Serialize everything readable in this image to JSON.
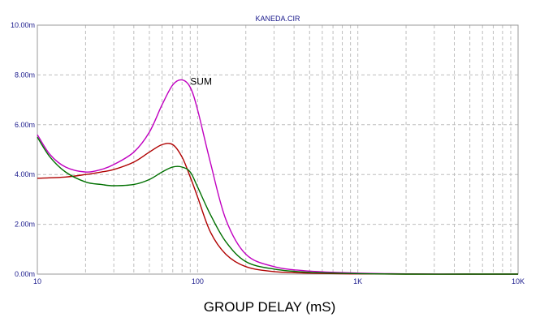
{
  "chart_data": {
    "type": "line",
    "title": "KANEDA.CIR",
    "xlabel": "GROUP DELAY (mS)",
    "ylabel": "",
    "x_scale": "log",
    "xlim": [
      10,
      10000
    ],
    "ylim": [
      0,
      0.01
    ],
    "x_ticks": [
      {
        "value": 10,
        "label": "10"
      },
      {
        "value": 100,
        "label": "100"
      },
      {
        "value": 1000,
        "label": "1K"
      },
      {
        "value": 10000,
        "label": "10K"
      }
    ],
    "y_ticks": [
      {
        "value": 0,
        "label": "0.00m"
      },
      {
        "value": 0.002,
        "label": "2.00m"
      },
      {
        "value": 0.004,
        "label": "4.00m"
      },
      {
        "value": 0.006,
        "label": "6.00m"
      },
      {
        "value": 0.008,
        "label": "8.00m"
      },
      {
        "value": 0.01,
        "label": "10.00m"
      }
    ],
    "grid": true,
    "grid_style": "dashed",
    "annotations": [
      {
        "text": "SUM",
        "x": 90,
        "y": 0.0076
      }
    ],
    "series": [
      {
        "name": "",
        "color": "#c000c0",
        "x": [
          10,
          12,
          15,
          20,
          25,
          30,
          40,
          50,
          60,
          70,
          80,
          90,
          100,
          120,
          150,
          200,
          300,
          500,
          1000,
          1500,
          2000,
          5000,
          10000
        ],
        "y": [
          0.0056,
          0.0048,
          0.0043,
          0.0041,
          0.0042,
          0.0044,
          0.0049,
          0.0057,
          0.0068,
          0.0076,
          0.0078,
          0.0075,
          0.0066,
          0.0045,
          0.0022,
          0.0008,
          0.0003,
          0.00012,
          4e-05,
          2e-05,
          1e-05,
          0.0,
          0.0
        ]
      },
      {
        "name": "",
        "color": "#b00000",
        "x": [
          10,
          15,
          20,
          25,
          30,
          40,
          50,
          60,
          70,
          80,
          90,
          100,
          120,
          150,
          200,
          300,
          500,
          1000,
          2000,
          5000,
          10000
        ],
        "y": [
          0.00385,
          0.0039,
          0.004,
          0.0041,
          0.0042,
          0.0045,
          0.0049,
          0.0052,
          0.0052,
          0.0047,
          0.0039,
          0.0031,
          0.0017,
          0.0008,
          0.0003,
          0.0001,
          4e-05,
          1e-05,
          0.0,
          0.0,
          0.0
        ]
      },
      {
        "name": "",
        "color": "#007000",
        "x": [
          10,
          12,
          15,
          20,
          25,
          30,
          40,
          50,
          60,
          70,
          80,
          90,
          100,
          120,
          150,
          200,
          300,
          500,
          1000,
          2000,
          5000,
          10000
        ],
        "y": [
          0.0055,
          0.0047,
          0.0041,
          0.0037,
          0.0036,
          0.00355,
          0.0036,
          0.0038,
          0.0041,
          0.0043,
          0.0043,
          0.0041,
          0.0035,
          0.0024,
          0.0013,
          0.0005,
          0.0002,
          7e-05,
          2e-05,
          0.0,
          0.0,
          0.0
        ]
      }
    ]
  }
}
